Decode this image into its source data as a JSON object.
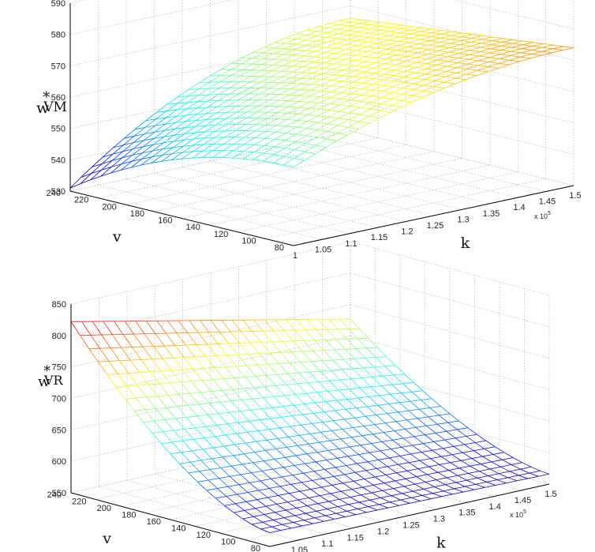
{
  "chart_data": [
    {
      "type": "surface",
      "zlabel": {
        "base": "w",
        "sup": "*",
        "sub": "VM"
      },
      "xlabel": "k",
      "ylabel": "v",
      "x_exponent_label": "x 10",
      "x_exponent_power": "5",
      "x_ticks": [
        "1",
        "1.05",
        "1.1",
        "1.15",
        "1.2",
        "1.25",
        "1.3",
        "1.35",
        "1.4",
        "1.45",
        "1.5"
      ],
      "y_ticks": [
        "80",
        "100",
        "120",
        "140",
        "160",
        "180",
        "200",
        "220",
        "240"
      ],
      "z_ticks": [
        "530",
        "540",
        "550",
        "560",
        "570",
        "580",
        "590"
      ],
      "x_range": [
        1.0,
        1.5
      ],
      "y_range": [
        80,
        240
      ],
      "z_range": [
        530,
        590
      ],
      "grid": true,
      "style": "mesh",
      "corner_values": [
        {
          "k": 1.0,
          "v": 240,
          "w": 531
        },
        {
          "k": 1.0,
          "v": 80,
          "w": 555
        },
        {
          "k": 1.5,
          "v": 240,
          "w": 566
        },
        {
          "k": 1.5,
          "v": 80,
          "w": 574
        }
      ]
    },
    {
      "type": "surface",
      "zlabel": {
        "base": "w",
        "sup": "*",
        "sub": "VR"
      },
      "xlabel": "k",
      "ylabel": "v",
      "x_exponent_label": "x 10",
      "x_exponent_power": "5",
      "x_ticks": [
        "1",
        "1.05",
        "1.1",
        "1.15",
        "1.2",
        "1.25",
        "1.3",
        "1.35",
        "1.4",
        "1.45",
        "1.5"
      ],
      "y_ticks": [
        "80",
        "100",
        "120",
        "140",
        "160",
        "180",
        "200",
        "220",
        "240"
      ],
      "z_ticks": [
        "550",
        "600",
        "650",
        "700",
        "750",
        "800",
        "850"
      ],
      "x_range": [
        1.0,
        1.5
      ],
      "y_range": [
        80,
        240
      ],
      "z_range": [
        550,
        850
      ],
      "grid": true,
      "style": "mesh",
      "corner_values": [
        {
          "k": 1.0,
          "v": 240,
          "w": 822
        },
        {
          "k": 1.0,
          "v": 80,
          "w": 572
        },
        {
          "k": 1.5,
          "v": 240,
          "w": 727
        },
        {
          "k": 1.5,
          "v": 80,
          "w": 566
        }
      ]
    }
  ]
}
